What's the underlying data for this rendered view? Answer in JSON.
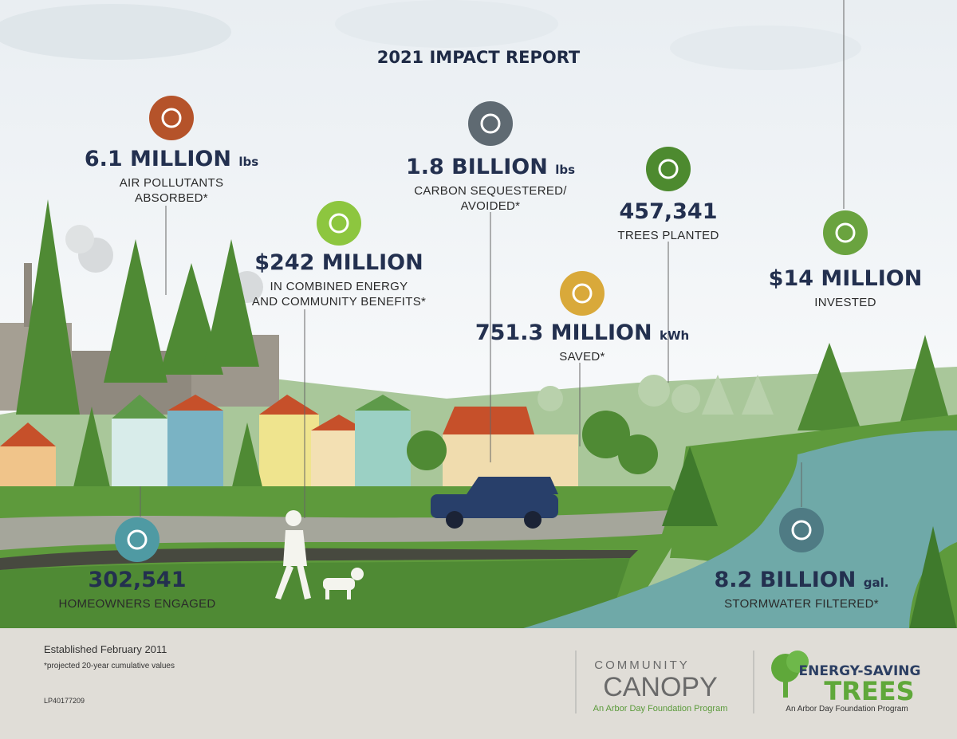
{
  "title": "2021 IMPACT REPORT",
  "stats": [
    {
      "value": "6.1 MILLION",
      "unit": "lbs",
      "label": [
        "AIR POLLUTANTS",
        "ABSORBED*"
      ]
    },
    {
      "value": "$242 MILLION",
      "label": [
        "IN COMBINED ENERGY",
        "AND COMMUNITY BENEFITS*"
      ]
    },
    {
      "value": "1.8 BILLION",
      "unit": "lbs",
      "label": [
        "CARBON SEQUESTERED/",
        "AVOIDED*"
      ]
    },
    {
      "value": "457,341",
      "label": [
        "TREES PLANTED"
      ]
    },
    {
      "value": "751.3 MILLION",
      "unit": "kWh",
      "label": [
        "SAVED*"
      ]
    },
    {
      "value": "$14 MILLION",
      "label": [
        "INVESTED"
      ]
    },
    {
      "value": "302,541",
      "label": [
        "HOMEOWNERS ENGAGED"
      ]
    },
    {
      "value": "8.2 BILLION",
      "unit": "gal.",
      "label": [
        "STORMWATER FILTERED*"
      ]
    }
  ],
  "footer": {
    "established": "Established February 2011",
    "footnote": "*projected 20-year cumulative values",
    "code": "LP40177209"
  },
  "logos": [
    {
      "line1": "COMMUNITY",
      "line2": "CANOPY",
      "tagline": "An Arbor Day Foundation Program"
    },
    {
      "line1": "ENERGY-SAVING",
      "line2": "TREES",
      "tagline": "An Arbor Day Foundation Program"
    }
  ]
}
